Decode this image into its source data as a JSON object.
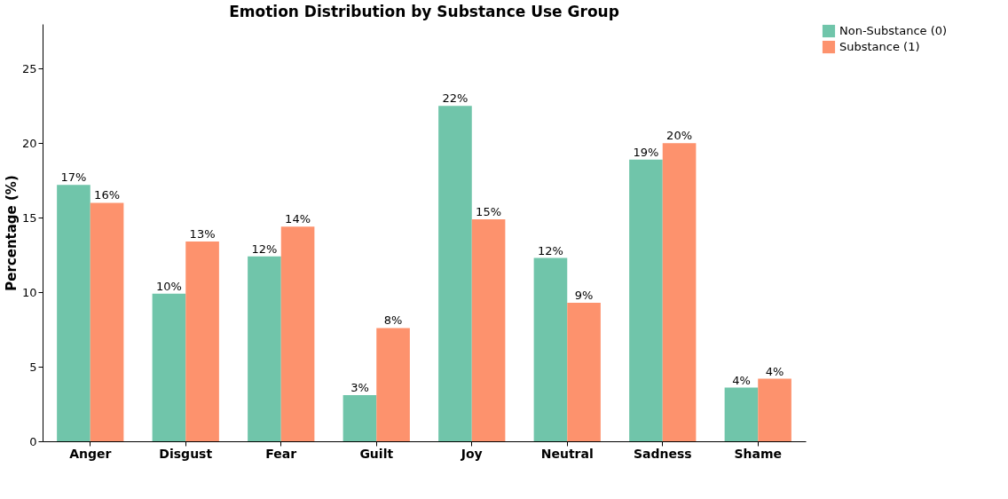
{
  "chart_data": {
    "type": "bar",
    "title": "Emotion Distribution by Substance Use Group",
    "ylabel": "Percentage (%)",
    "categories": [
      "Anger",
      "Disgust",
      "Fear",
      "Guilt",
      "Joy",
      "Neutral",
      "Sadness",
      "Shame"
    ],
    "series": [
      {
        "name": "Non-Substance (0)",
        "color": "#70c5aa",
        "values": [
          17.2,
          9.9,
          12.4,
          3.1,
          22.5,
          12.3,
          18.9,
          3.6
        ],
        "value_labels": [
          "17%",
          "10%",
          "12%",
          "3%",
          "22%",
          "12%",
          "19%",
          "4%"
        ]
      },
      {
        "name": "Substance (1)",
        "color": "#fd926d",
        "values": [
          16.0,
          13.4,
          14.4,
          7.6,
          14.9,
          9.3,
          20.0,
          4.2
        ],
        "value_labels": [
          "16%",
          "13%",
          "14%",
          "8%",
          "15%",
          "9%",
          "20%",
          "4%"
        ]
      }
    ],
    "ylim": [
      0,
      28
    ],
    "yticks": [
      0,
      5,
      10,
      15,
      20,
      25
    ],
    "grid": false,
    "legend": "top right"
  }
}
